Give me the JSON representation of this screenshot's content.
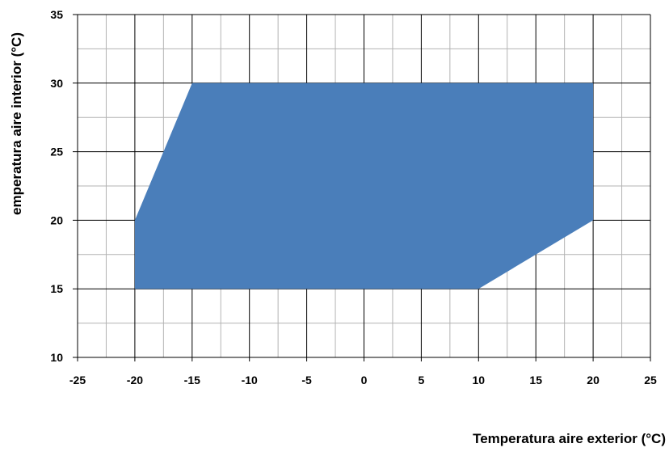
{
  "chart_data": {
    "type": "area",
    "title": "",
    "xlabel": "Temperatura aire exterior (°C)",
    "ylabel": "emperatura aire interior (°C)",
    "xlim": [
      -25,
      25
    ],
    "ylim": [
      10,
      35
    ],
    "x_ticks": [
      -25,
      -20,
      -15,
      -10,
      -5,
      0,
      5,
      10,
      15,
      20,
      25
    ],
    "y_ticks": [
      10,
      15,
      20,
      25,
      30,
      35
    ],
    "grid": true,
    "minor_grid_step": 2.5,
    "fill_color": "#4a7eba",
    "series": [
      {
        "x": [
          -20,
          -15,
          20,
          20,
          10,
          -20
        ],
        "y": [
          20,
          30,
          30,
          20,
          15,
          15
        ]
      }
    ]
  }
}
